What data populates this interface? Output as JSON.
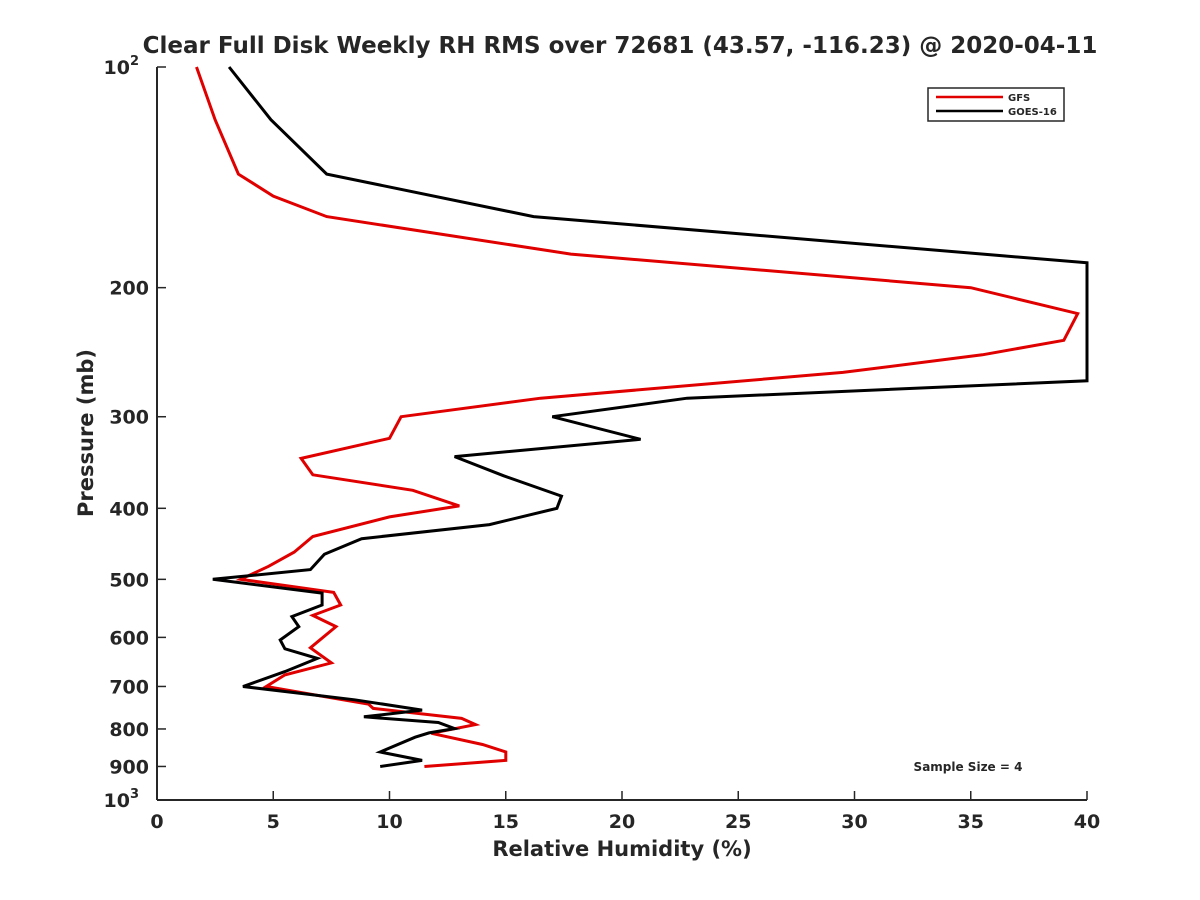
{
  "chart_data": {
    "type": "line",
    "title": "Clear Full Disk Weekly RH RMS over 72681 (43.57, -116.23) @ 2020-04-11",
    "xlabel": "Relative Humidity (%)",
    "ylabel": "Pressure (mb)",
    "xlim": [
      0,
      40
    ],
    "ylim": [
      100,
      1000
    ],
    "y_scale": "log",
    "y_reversed": true,
    "grid": false,
    "legend_position": "top-right",
    "x_ticks": [
      0,
      5,
      10,
      15,
      20,
      25,
      30,
      35,
      40
    ],
    "x_tick_labels": [
      "0",
      "5",
      "10",
      "15",
      "20",
      "25",
      "30",
      "35",
      "40"
    ],
    "y_ticks": [
      100,
      200,
      300,
      400,
      500,
      600,
      700,
      800,
      900,
      1000
    ],
    "y_tick_labels": [
      "10^2",
      "200",
      "300",
      "400",
      "500",
      "600",
      "700",
      "800",
      "900",
      "10^3"
    ],
    "annotation": "Sample Size = 4",
    "series": [
      {
        "name": "GFS",
        "color": "#e00000",
        "points": [
          [
            1.7,
            100
          ],
          [
            2.5,
            118
          ],
          [
            3.5,
            140
          ],
          [
            5.0,
            150
          ],
          [
            7.3,
            160
          ],
          [
            17.8,
            180
          ],
          [
            35.0,
            200
          ],
          [
            39.6,
            217
          ],
          [
            39.0,
            236
          ],
          [
            35.5,
            247
          ],
          [
            29.5,
            261
          ],
          [
            16.5,
            283
          ],
          [
            10.5,
            300
          ],
          [
            10.0,
            321
          ],
          [
            6.2,
            342
          ],
          [
            6.7,
            360
          ],
          [
            11.0,
            378
          ],
          [
            13.0,
            397
          ],
          [
            10.0,
            411
          ],
          [
            6.7,
            437
          ],
          [
            5.9,
            459
          ],
          [
            4.8,
            480
          ],
          [
            3.6,
            500
          ],
          [
            7.6,
            521
          ],
          [
            7.9,
            542
          ],
          [
            6.7,
            560
          ],
          [
            7.7,
            580
          ],
          [
            6.6,
            620
          ],
          [
            7.5,
            650
          ],
          [
            5.5,
            675
          ],
          [
            4.7,
            700
          ],
          [
            6.9,
            720
          ],
          [
            9.1,
            740
          ],
          [
            9.3,
            750
          ],
          [
            13.1,
            774
          ],
          [
            13.7,
            789
          ],
          [
            11.8,
            811
          ],
          [
            14.0,
            840
          ],
          [
            15.0,
            860
          ],
          [
            15.0,
            883
          ],
          [
            11.5,
            900
          ]
        ]
      },
      {
        "name": "GOES-16",
        "color": "#000000",
        "points": [
          [
            3.1,
            100
          ],
          [
            4.9,
            118
          ],
          [
            7.3,
            140
          ],
          [
            16.2,
            160
          ],
          [
            40.0,
            185
          ],
          [
            40.0,
            268
          ],
          [
            22.8,
            283
          ],
          [
            17.0,
            300
          ],
          [
            20.8,
            322
          ],
          [
            12.8,
            340
          ],
          [
            14.9,
            361
          ],
          [
            17.4,
            385
          ],
          [
            17.2,
            400
          ],
          [
            14.3,
            421
          ],
          [
            8.8,
            440
          ],
          [
            7.2,
            462
          ],
          [
            6.6,
            485
          ],
          [
            2.4,
            500
          ],
          [
            7.1,
            522
          ],
          [
            7.1,
            542
          ],
          [
            5.8,
            562
          ],
          [
            6.1,
            580
          ],
          [
            5.3,
            605
          ],
          [
            5.5,
            622
          ],
          [
            6.9,
            641
          ],
          [
            5.5,
            668
          ],
          [
            3.7,
            700
          ],
          [
            8.5,
            730
          ],
          [
            11.4,
            754
          ],
          [
            8.9,
            770
          ],
          [
            12.1,
            784
          ],
          [
            12.8,
            799
          ],
          [
            11.7,
            810
          ],
          [
            11.1,
            821
          ],
          [
            9.6,
            860
          ],
          [
            11.4,
            883
          ],
          [
            9.6,
            900
          ]
        ]
      }
    ]
  }
}
